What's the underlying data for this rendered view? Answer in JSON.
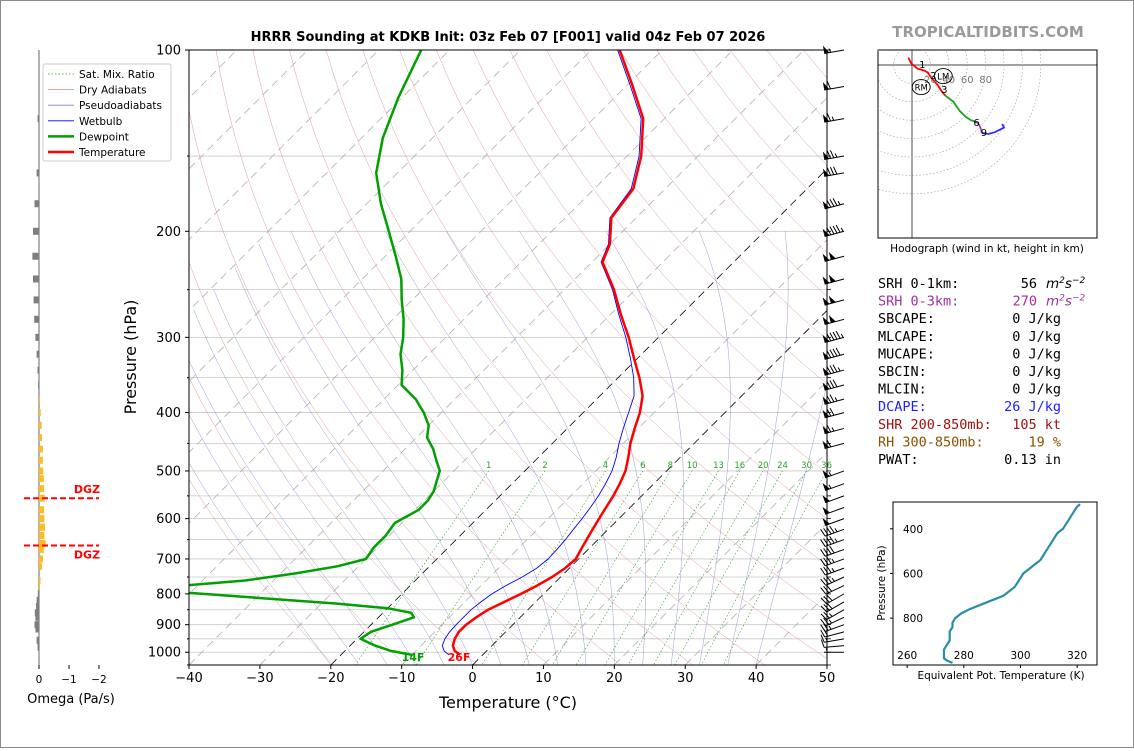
{
  "chart_data": {
    "type": "skew-t",
    "title": "HRRR Sounding at KDKB Init: 03z Feb 07 [F001] valid 04z Feb 07 2026",
    "watermark": "TROPICALTIDBITS.COM",
    "xlabel": "Temperature (°C)",
    "ylabel": "Pressure (hPa)",
    "xlim": [
      -40,
      50
    ],
    "ylim": [
      1050,
      100
    ],
    "y_scale": "log",
    "x_ticks": [
      "−40",
      "−30",
      "−20",
      "−10",
      "0",
      "10",
      "20",
      "30",
      "40",
      "50"
    ],
    "y_ticks": [
      "100",
      "200",
      "300",
      "400",
      "500",
      "600",
      "700",
      "800",
      "900",
      "1000"
    ],
    "legend": {
      "placement": "top-left",
      "entries": [
        "Sat. Mix. Ratio",
        "Dry Adiabats",
        "Pseudoadiabats",
        "Wetbulb",
        "Dewpoint",
        "Temperature"
      ]
    },
    "mixing_ratio_labels": [
      "1",
      "2",
      "4",
      "6",
      "8",
      "10",
      "13",
      "16",
      "20",
      "24",
      "30",
      "36"
    ],
    "surface_labels": {
      "dewpoint": "14F",
      "temperature": "26F"
    },
    "series": [
      {
        "name": "Temperature",
        "color": "#ff0000",
        "pressure": [
          1010,
          995,
          975,
          950,
          925,
          900,
          875,
          850,
          825,
          800,
          775,
          750,
          725,
          700,
          675,
          650,
          625,
          600,
          575,
          550,
          525,
          500,
          475,
          450,
          425,
          400,
          375,
          350,
          325,
          300,
          275,
          250,
          225,
          210,
          190,
          170,
          150,
          130,
          115,
          100
        ],
        "temperature": [
          -3.2,
          -4.5,
          -5.5,
          -6.2,
          -6.6,
          -6.6,
          -6.2,
          -5.6,
          -4.4,
          -3.2,
          -2.1,
          -1.2,
          -0.6,
          -0.4,
          -1.0,
          -1.6,
          -2.2,
          -2.8,
          -3.4,
          -4.0,
          -4.8,
          -5.8,
          -7.3,
          -9.0,
          -10.5,
          -12.0,
          -14.0,
          -17.0,
          -20.5,
          -24.2,
          -28.5,
          -33.0,
          -38.5,
          -40.0,
          -43.5,
          -44.5,
          -48.0,
          -53.0,
          -59.0,
          -66.0
        ]
      },
      {
        "name": "Dewpoint",
        "color": "#00a000",
        "pressure": [
          1010,
          995,
          975,
          950,
          925,
          900,
          875,
          860,
          845,
          830,
          815,
          800,
          790,
          780,
          775,
          760,
          740,
          720,
          700,
          670,
          640,
          610,
          580,
          560,
          540,
          520,
          500,
          480,
          460,
          440,
          420,
          400,
          380,
          360,
          340,
          320,
          300,
          280,
          260,
          240,
          220,
          200,
          180,
          160,
          140,
          120,
          100
        ],
        "dewpoint": [
          -10.0,
          -13.5,
          -16.5,
          -19.5,
          -19.0,
          -17.0,
          -15.0,
          -16.0,
          -20.0,
          -28.0,
          -38.0,
          -48.0,
          -55.0,
          -57.0,
          -52.0,
          -44.0,
          -38.0,
          -33.0,
          -30.0,
          -30.5,
          -30.5,
          -31.0,
          -29.5,
          -29.5,
          -30.0,
          -31.0,
          -32.0,
          -34.0,
          -36.0,
          -38.5,
          -40.0,
          -42.5,
          -45.5,
          -49.5,
          -51.5,
          -54.0,
          -56.0,
          -58.5,
          -61.5,
          -64.5,
          -68.5,
          -73.0,
          -78.0,
          -83.0,
          -87.0,
          -90.5,
          -94.0
        ]
      },
      {
        "name": "Wetbulb",
        "color": "#0000ff",
        "pressure": [
          1010,
          995,
          975,
          950,
          925,
          900,
          875,
          850,
          825,
          800,
          775,
          750,
          725,
          700,
          675,
          650,
          625,
          600,
          575,
          550,
          525,
          500,
          475,
          450,
          425,
          400,
          375,
          350,
          325,
          300,
          275,
          250,
          225,
          210,
          190,
          170,
          150,
          130,
          115,
          100
        ],
        "wetbulb": [
          -4.8,
          -6.0,
          -7.0,
          -7.6,
          -7.9,
          -8.0,
          -8.0,
          -8.0,
          -7.7,
          -7.3,
          -6.5,
          -5.4,
          -4.6,
          -4.3,
          -4.4,
          -4.6,
          -4.9,
          -5.2,
          -5.6,
          -6.1,
          -6.8,
          -7.7,
          -9.0,
          -10.6,
          -12.1,
          -13.6,
          -15.2,
          -17.8,
          -21.0,
          -24.6,
          -28.8,
          -33.2,
          -38.7,
          -40.2,
          -43.7,
          -44.8,
          -48.3,
          -53.3,
          -59.3,
          -66.3
        ]
      }
    ],
    "winds": {
      "pressure": [
        1000,
        975,
        950,
        925,
        900,
        875,
        850,
        825,
        800,
        775,
        750,
        725,
        700,
        675,
        650,
        625,
        600,
        575,
        550,
        525,
        500,
        450,
        425,
        400,
        380,
        360,
        340,
        320,
        300,
        280,
        260,
        240,
        220,
        200,
        180,
        160,
        150,
        130,
        115,
        100
      ],
      "direction_deg": [
        270,
        265,
        260,
        255,
        250,
        245,
        240,
        240,
        240,
        245,
        245,
        250,
        250,
        250,
        250,
        250,
        250,
        250,
        250,
        250,
        250,
        255,
        255,
        255,
        255,
        255,
        255,
        255,
        255,
        255,
        255,
        255,
        255,
        255,
        255,
        260,
        260,
        260,
        260,
        260
      ],
      "speed_kt": [
        5,
        10,
        15,
        20,
        25,
        25,
        25,
        30,
        30,
        30,
        35,
        35,
        35,
        40,
        45,
        45,
        50,
        50,
        50,
        55,
        55,
        60,
        65,
        70,
        75,
        80,
        85,
        90,
        95,
        100,
        100,
        100,
        100,
        95,
        85,
        80,
        75,
        65,
        60,
        55
      ]
    },
    "omega": {
      "xlabel": "Omega (Pa/s)",
      "xlim": [
        0,
        -2
      ],
      "x_ticks": [
        "0",
        "−1",
        "−2"
      ],
      "dgz_label": "DGZ",
      "dgz_pressures": [
        555,
        665
      ],
      "pressure": [
        980,
        955,
        915,
        900,
        875,
        860,
        840,
        820,
        800,
        775,
        760,
        720,
        700,
        675,
        660,
        640,
        620,
        600,
        580,
        555,
        535,
        515,
        500,
        480,
        460,
        440,
        420,
        400,
        380,
        360,
        340,
        320,
        300,
        280,
        260,
        240,
        220,
        200,
        180,
        160,
        130
      ],
      "omega": [
        0.05,
        0.08,
        0.12,
        0.15,
        0.12,
        0.14,
        0.1,
        0.08,
        0.04,
        -0.02,
        -0.05,
        -0.1,
        -0.13,
        -0.16,
        -0.22,
        -0.18,
        -0.2,
        -0.18,
        -0.17,
        -0.19,
        -0.17,
        -0.16,
        -0.14,
        -0.13,
        -0.13,
        -0.1,
        -0.09,
        -0.06,
        -0.03,
        0.03,
        0.05,
        0.08,
        0.12,
        0.16,
        0.18,
        0.2,
        0.22,
        0.2,
        0.15,
        0.08,
        0.05
      ],
      "colors": {
        "negative": "#ffbb22",
        "positive": "#7f7f7f"
      }
    },
    "hodograph": {
      "caption": "Hodograph (wind in kt, height in km)",
      "ring_labels": [
        "20",
        "40",
        "60",
        "80"
      ],
      "height_labels": [
        "1",
        "2",
        "3",
        "6",
        "9"
      ],
      "storm_motion_labels": [
        "LM",
        "RM"
      ],
      "segments": [
        {
          "color": "#ff0000",
          "points": [
            [
              -4,
              8
            ],
            [
              -1,
              2
            ],
            [
              6,
              -4
            ],
            [
              13,
              -6
            ],
            [
              17,
              -8
            ],
            [
              22,
              -15
            ],
            [
              28,
              -22
            ],
            [
              32,
              -28
            ],
            [
              36,
              -33
            ]
          ]
        },
        {
          "color": "#22a022",
          "points": [
            [
              36,
              -33
            ],
            [
              45,
              -40
            ],
            [
              52,
              -50
            ],
            [
              58,
              -56
            ],
            [
              64,
              -60
            ],
            [
              70,
              -62
            ]
          ]
        },
        {
          "color": "#a040c0",
          "points": [
            [
              70,
              -62
            ],
            [
              73,
              -65
            ],
            [
              75,
              -70
            ],
            [
              76,
              -74
            ]
          ]
        },
        {
          "color": "#3030ff",
          "points": [
            [
              76,
              -74
            ],
            [
              83,
              -75
            ],
            [
              90,
              -73
            ],
            [
              96,
              -70
            ],
            [
              100,
              -68
            ],
            [
              98,
              -64
            ]
          ]
        }
      ],
      "markers": [
        {
          "label": "1",
          "x": 9,
          "y": 1
        },
        {
          "label": "2",
          "x": 21,
          "y": -11
        },
        {
          "label": "3",
          "x": 33,
          "y": -26
        },
        {
          "label": "6",
          "x": 68,
          "y": -62
        },
        {
          "label": "9",
          "x": 76,
          "y": -73
        }
      ],
      "storm_motion": {
        "LM": [
          34,
          -12
        ],
        "RM": [
          10,
          -24
        ]
      }
    },
    "stats": [
      {
        "label": "SRH 0-1km:",
        "value": "56",
        "unit": "m2s-2",
        "color": "#000000"
      },
      {
        "label": "SRH 0-3km:",
        "value": "270",
        "unit": "m2s-2",
        "color": "#a030a0"
      },
      {
        "label": "SBCAPE:",
        "value": "0 J/kg",
        "unit": "",
        "color": "#000000"
      },
      {
        "label": "MLCAPE:",
        "value": "0 J/kg",
        "unit": "",
        "color": "#000000"
      },
      {
        "label": "MUCAPE:",
        "value": "0 J/kg",
        "unit": "",
        "color": "#000000"
      },
      {
        "label": "SBCIN:",
        "value": "0 J/kg",
        "unit": "",
        "color": "#000000"
      },
      {
        "label": "MLCIN:",
        "value": "0 J/kg",
        "unit": "",
        "color": "#000000"
      },
      {
        "label": "DCAPE:",
        "value": "26 J/kg",
        "unit": "",
        "color": "#2020ff"
      },
      {
        "label": "SHR 200-850mb:",
        "value": "105 kt",
        "unit": "",
        "color": "#a01010"
      },
      {
        "label": "RH 300-850mb:",
        "value": "19 %",
        "unit": "",
        "color": "#8a5000"
      },
      {
        "label": "PWAT:",
        "value": "0.13 in",
        "unit": "",
        "color": "#000000"
      }
    ],
    "theta_e": {
      "xlabel": "Equivalent Pot. Temperature (K)",
      "ylabel": "Pressure (hPa)",
      "xlim": [
        255,
        327
      ],
      "ylim": [
        1010,
        280
      ],
      "x_ticks": [
        "260",
        "280",
        "300",
        "320"
      ],
      "y_ticks": [
        "400",
        "600",
        "800"
      ],
      "color": "#2a8fa6",
      "pressure": [
        1000,
        990,
        980,
        960,
        940,
        920,
        900,
        880,
        860,
        840,
        820,
        800,
        780,
        760,
        740,
        720,
        700,
        680,
        660,
        640,
        620,
        600,
        580,
        560,
        540,
        520,
        500,
        480,
        460,
        440,
        420,
        400,
        380,
        360,
        340,
        320,
        300,
        290
      ],
      "theta_e": [
        276,
        274,
        273,
        273,
        273,
        274,
        275,
        275,
        275,
        276,
        276,
        277,
        279,
        282,
        286,
        290,
        294,
        296,
        298,
        299,
        300,
        301,
        303,
        305,
        307,
        308,
        309,
        310,
        311,
        312,
        313,
        315,
        316,
        317,
        318,
        319,
        320,
        321
      ]
    }
  }
}
